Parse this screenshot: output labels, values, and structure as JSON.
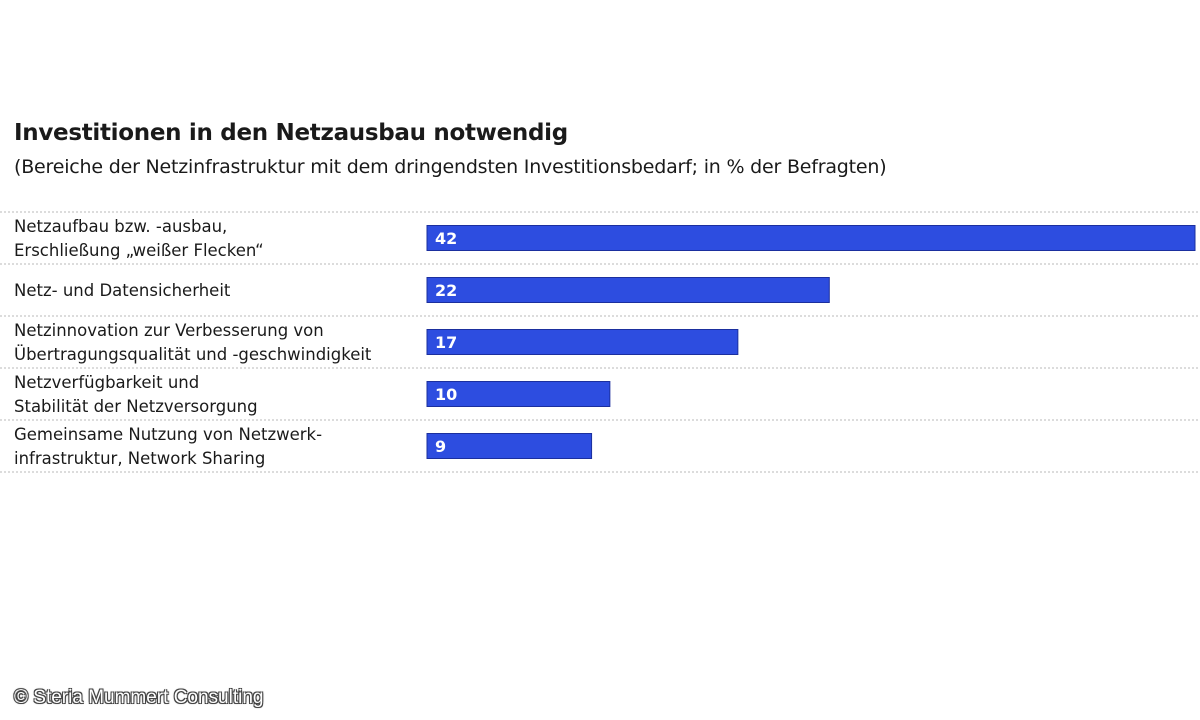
{
  "chart_data": {
    "type": "bar",
    "orientation": "horizontal",
    "title": "Investitionen in den Netzausbau notwendig",
    "subtitle": "(Bereiche der Netzinfrastruktur mit dem dringendsten Investitionsbedarf; in % der Befragten)",
    "categories": [
      [
        "Netzaufbau bzw. -ausbau,",
        "Erschließung „weißer Flecken“"
      ],
      [
        "Netz- und Datensicherheit"
      ],
      [
        "Netzinnovation zur Verbesserung von",
        "Übertragungsqualität und -geschwindigkeit"
      ],
      [
        "Netzverfügbarkeit und",
        "Stabilität der Netzversorgung"
      ],
      [
        "Gemeinsame Nutzung von Netzwerk-",
        "infrastruktur, Network Sharing"
      ]
    ],
    "values": [
      42,
      22,
      17,
      10,
      9
    ],
    "data_labels": [
      "42",
      "22",
      "17",
      "10",
      "9"
    ],
    "unit": "%",
    "xlim": [
      0,
      42
    ],
    "grid": false,
    "bar_color": "#2d4de0",
    "separator_color": "#b8b8b8"
  },
  "source": {
    "copyright": "© Steria Mummert Consulting"
  }
}
